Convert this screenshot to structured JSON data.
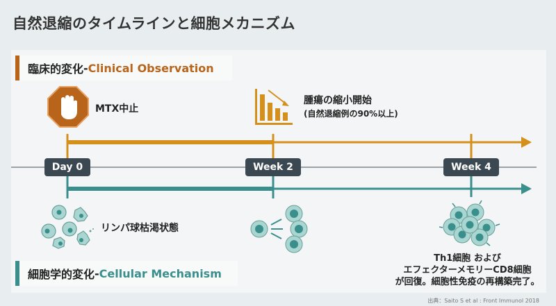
{
  "title": "自然退縮のタイムラインと細胞メカニズム",
  "clinical": {
    "label_jp": "臨床的変化",
    "separator": " - ",
    "label_en": "Clinical Observation",
    "color": "#b8651b"
  },
  "cellular": {
    "label_jp": "細胞学的変化",
    "separator": " - ",
    "label_en": "Cellular Mechanism",
    "color": "#3a8f8c"
  },
  "timeline": {
    "markers": [
      "Day 0",
      "Week 2",
      "Week 4"
    ],
    "clinical_color": "#d4901a",
    "cellular_color": "#3a8f8c"
  },
  "events": {
    "mtx": {
      "label": "MTX中止",
      "icon": "stop-hand-icon"
    },
    "tumor": {
      "line1": "腫瘍の縮小開始",
      "line2": "(自然退縮例の90%以上)",
      "icon": "declining-bar-chart-icon"
    },
    "lymph": {
      "label": "リンパ球枯渇状態",
      "icon": "damaged-cells-icon"
    },
    "expansion": {
      "icon": "cell-proliferation-icon"
    },
    "recovery": {
      "line1": "Th1細胞 および",
      "line2": "エフェクターメモリーCD8細胞",
      "line3": "が回復。細胞性免疫の再構築完了。",
      "icon": "cell-cluster-icon"
    }
  },
  "source": "出典：Saito S et al : Front Immunol 2018"
}
